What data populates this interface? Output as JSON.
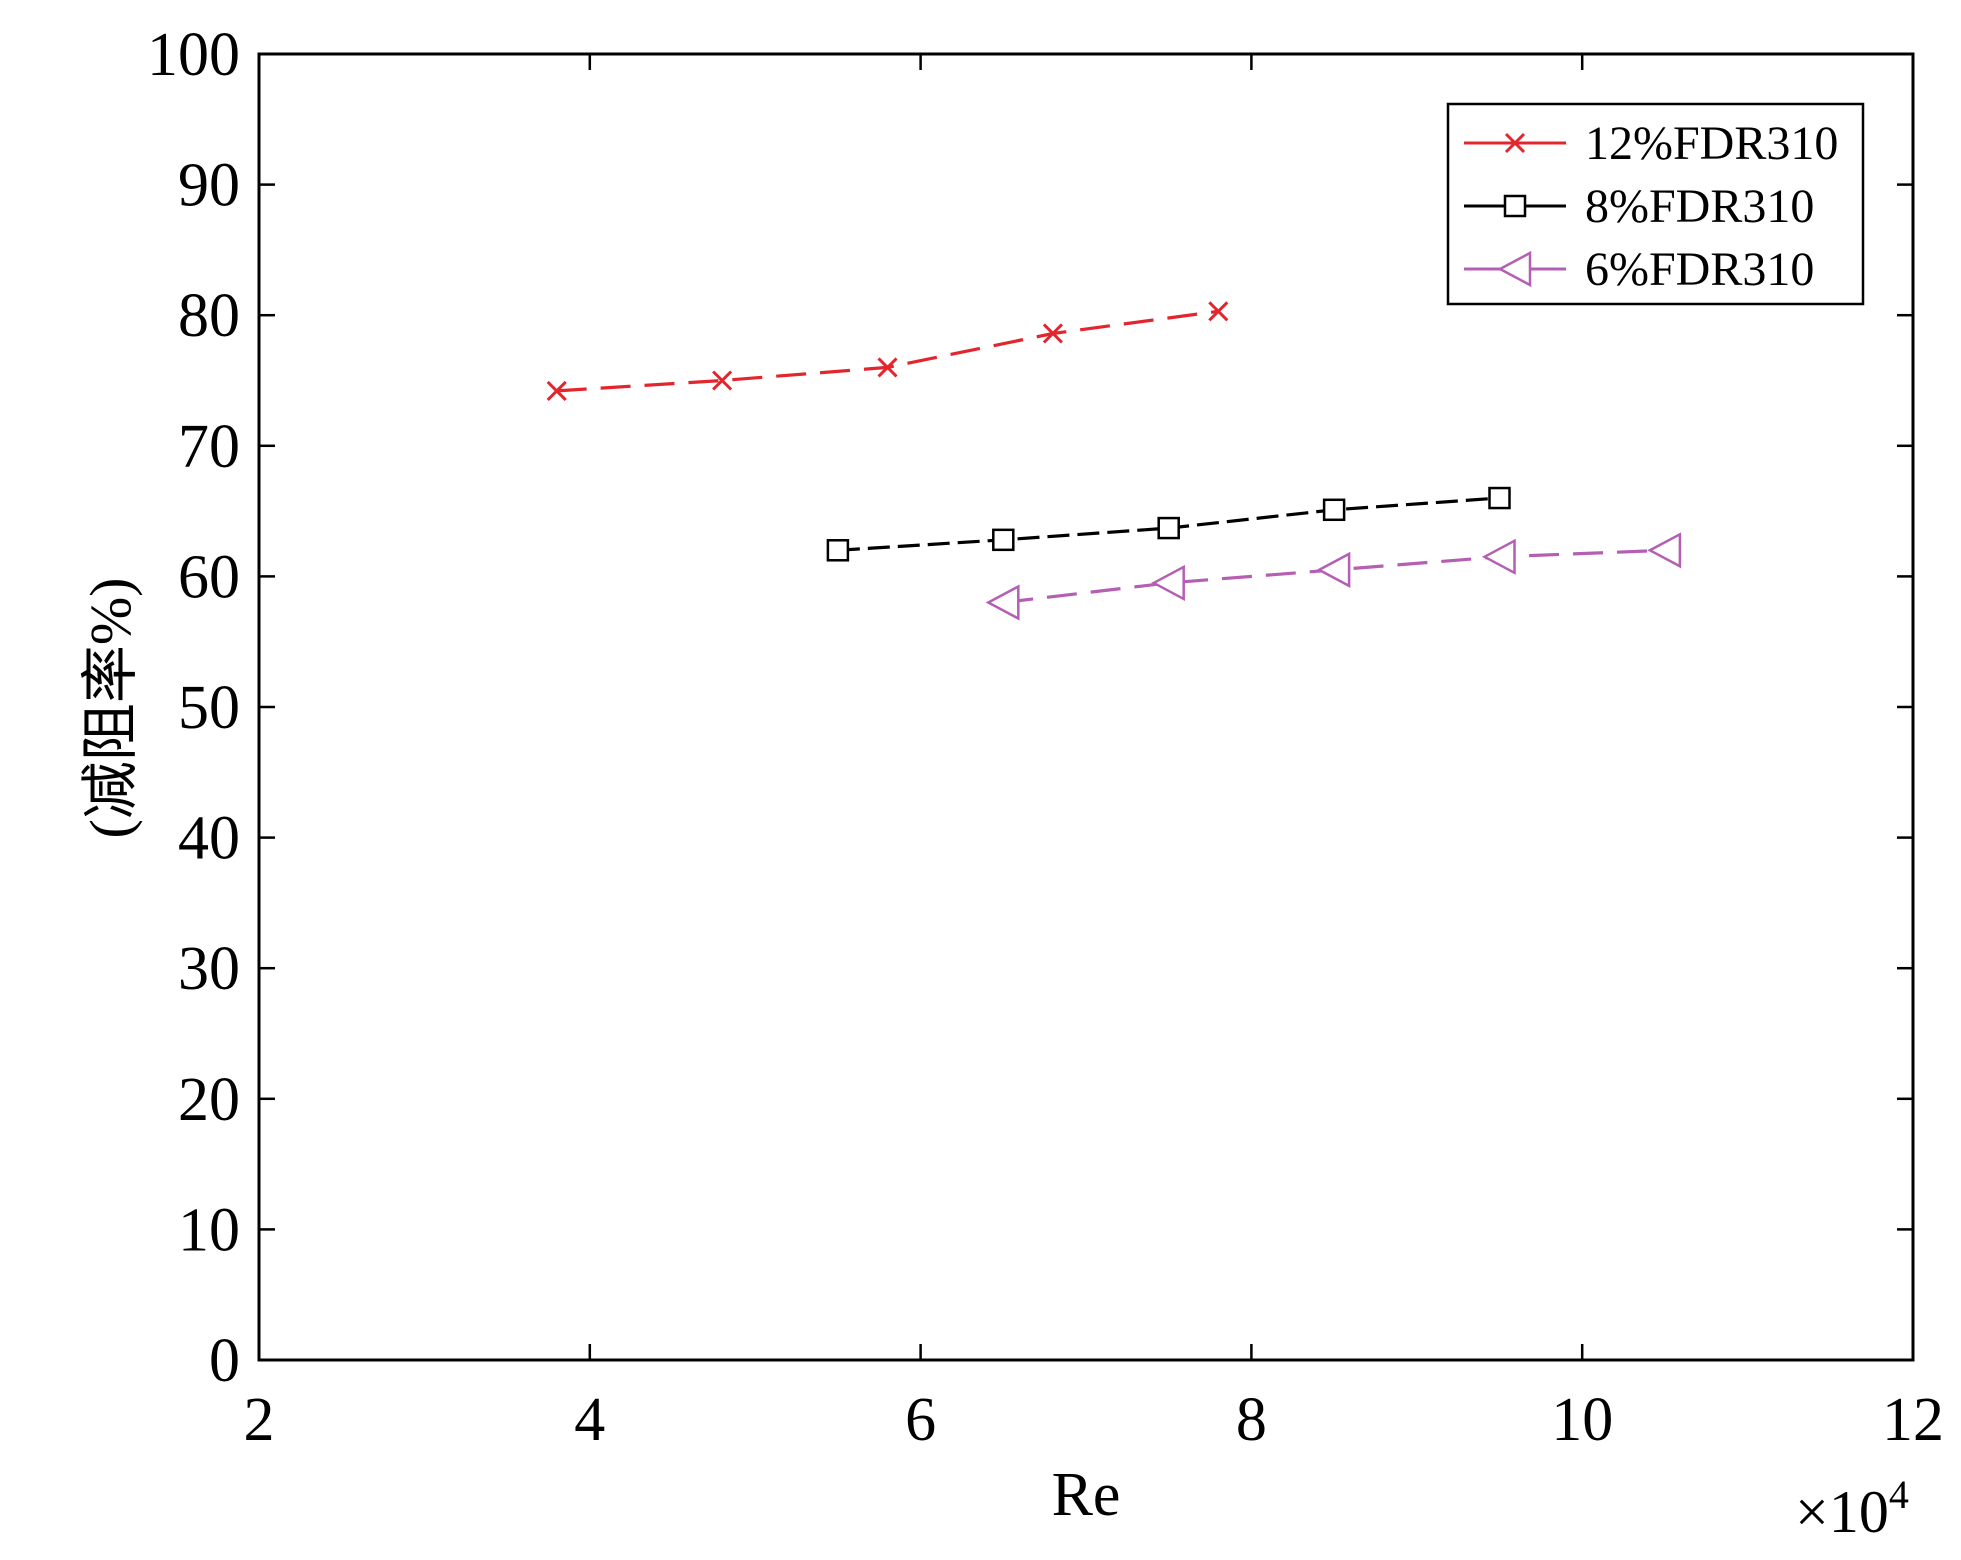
{
  "chart_data": {
    "type": "line",
    "xlabel": "Re",
    "ylabel": "(减阻率%)",
    "x_multiplier": {
      "base": "×10",
      "exponent": "4"
    },
    "xlim": [
      2,
      12
    ],
    "ylim": [
      0,
      100
    ],
    "xticks": [
      2,
      4,
      6,
      8,
      10,
      12
    ],
    "yticks": [
      0,
      10,
      20,
      30,
      40,
      50,
      60,
      70,
      80,
      90,
      100
    ],
    "grid": false,
    "legend": "top-right",
    "series": [
      {
        "name": "12%FDR310",
        "color": "#e3262d",
        "marker": "x",
        "line_style": "dashed",
        "x": [
          3.8,
          4.8,
          5.8,
          6.8,
          7.8
        ],
        "y": [
          74.2,
          75.0,
          76.0,
          78.6,
          80.3
        ]
      },
      {
        "name": "8%FDR310",
        "color": "#000000",
        "marker": "square",
        "line_style": "dashed",
        "x": [
          5.5,
          6.5,
          7.5,
          8.5,
          9.5
        ],
        "y": [
          62.0,
          62.8,
          63.7,
          65.1,
          66.0
        ]
      },
      {
        "name": "6%FDR310",
        "color": "#b45fb4",
        "marker": "triangle-left",
        "line_style": "dashed",
        "x": [
          6.5,
          7.5,
          8.5,
          9.5,
          10.5
        ],
        "y": [
          58.0,
          59.5,
          60.5,
          61.5,
          62.0
        ]
      }
    ]
  }
}
